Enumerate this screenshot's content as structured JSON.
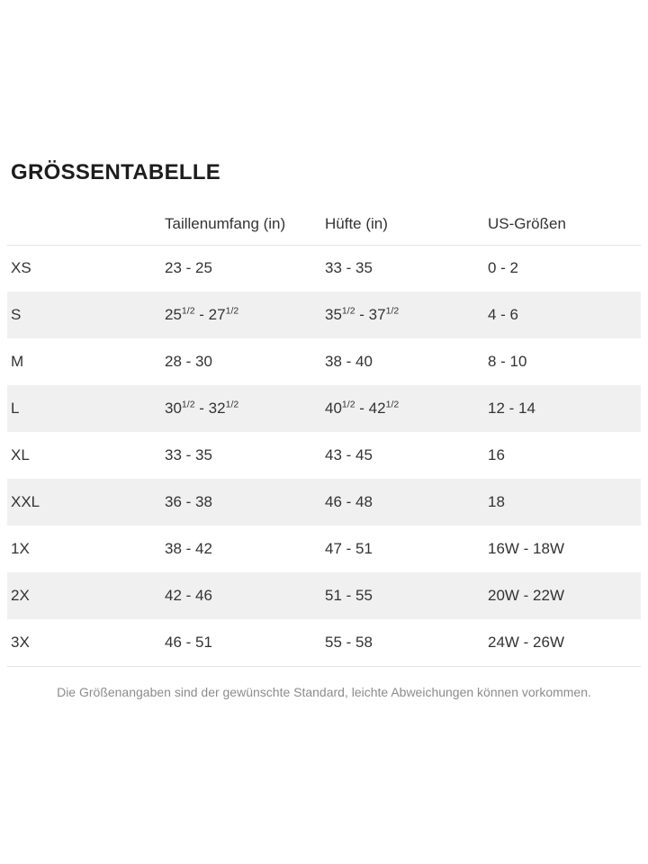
{
  "page": {
    "title": "GRÖSSENTABELLE",
    "footer_note": "Die Größenangaben sind der gewünschte Standard, leichte Abweichungen können vorkommen."
  },
  "table": {
    "columns": [
      "",
      "Taillenumfang (in)",
      "Hüfte (in)",
      "US-Größen"
    ],
    "rows": [
      {
        "size": "XS",
        "waist": "23 - 25",
        "hips": "33 - 35",
        "us": "0 - 2"
      },
      {
        "size": "S",
        "waist": "25½ - 27½",
        "hips": "35½ - 37½",
        "us": "4 - 6"
      },
      {
        "size": "M",
        "waist": "28 - 30",
        "hips": "38 - 40",
        "us": "8 - 10"
      },
      {
        "size": "L",
        "waist": "30½ - 32½",
        "hips": "40½ - 42½",
        "us": "12 - 14"
      },
      {
        "size": "XL",
        "waist": "33 - 35",
        "hips": "43 - 45",
        "us": "16"
      },
      {
        "size": "XXL",
        "waist": "36 - 38",
        "hips": "46 - 48",
        "us": "18"
      },
      {
        "size": "1X",
        "waist": "38 - 42",
        "hips": "47 - 51",
        "us": "16W - 18W"
      },
      {
        "size": "2X",
        "waist": "42 - 46",
        "hips": "51 - 55",
        "us": "20W - 22W"
      },
      {
        "size": "3X",
        "waist": "46 - 51",
        "hips": "55 - 58",
        "us": "24W - 26W"
      }
    ],
    "colors": {
      "stripe": "#f0f0f0",
      "border": "#e3e3e3",
      "text": "#333333",
      "title": "#1d1d1d",
      "muted": "#8c8c8c"
    }
  }
}
